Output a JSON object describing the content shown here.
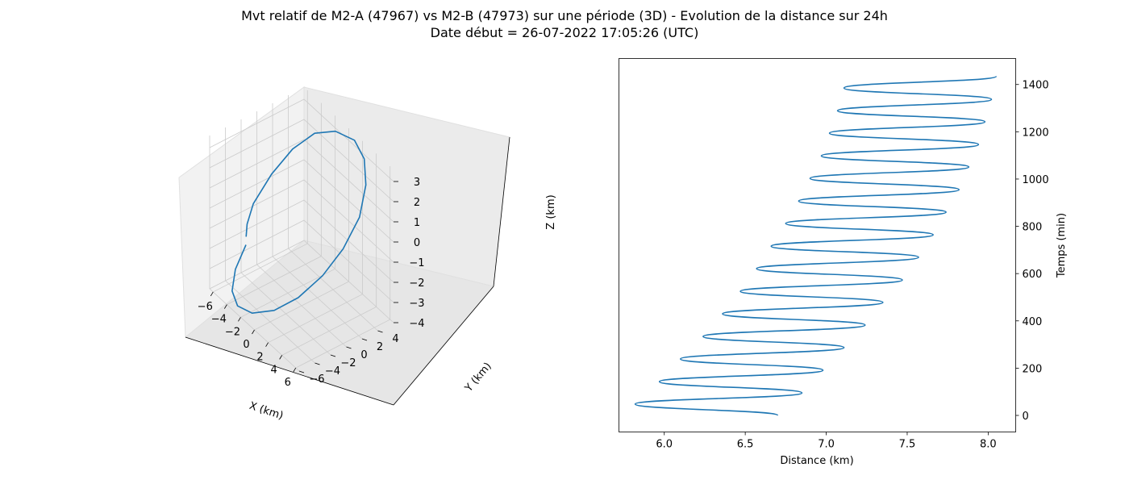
{
  "title_line1": "Mvt relatif de M2-A (47967) vs M2-B (47973) sur une période (3D) - Evolution de la distance sur 24h",
  "title_line2": "Date début = 26-07-2022 17:05:26 (UTC)",
  "colors": {
    "line": "#1f77b4",
    "pane_left": "#f2f2f2",
    "pane_right": "#ebebeb",
    "pane_floor": "#e6e6e6",
    "grid": "#cbcbcb"
  },
  "chart_data": [
    {
      "type": "line",
      "projection": "3d",
      "xlabel": "X (km)",
      "ylabel": "Y (km)",
      "zlabel": "Z (km)",
      "xlim": [
        -6.5,
        6.5
      ],
      "ylim": [
        -6,
        6
      ],
      "zlim": [
        -4,
        3.6
      ],
      "xticks": [
        "−6",
        "−4",
        "−2",
        "0",
        "2",
        "4",
        "6"
      ],
      "xtick_values": [
        -6,
        -4,
        -2,
        0,
        2,
        4,
        6
      ],
      "yticks": [
        "−6",
        "−4",
        "−2",
        "0",
        "2",
        "4"
      ],
      "ytick_values": [
        -6,
        -4,
        -2,
        0,
        2,
        4
      ],
      "zticks": [
        "3",
        "2",
        "1",
        "0",
        "−1",
        "−2",
        "−3",
        "−4"
      ],
      "ztick_values": [
        3,
        2,
        1,
        0,
        -1,
        -2,
        -3,
        -4
      ],
      "grid": true,
      "series": [
        {
          "x": [
            -5.8,
            -5.5,
            -4.5,
            -2.9,
            -0.8,
            1.5,
            3.5,
            5.0,
            5.8,
            5.9,
            5.0,
            3.5,
            1.5,
            -0.8,
            -2.9,
            -4.5,
            -5.5,
            -6.1,
            -6.2,
            -6.0
          ],
          "y": [
            -2.0,
            -3.6,
            -4.9,
            -5.6,
            -5.6,
            -4.8,
            -3.5,
            -1.7,
            0.2,
            2.2,
            3.8,
            4.9,
            5.4,
            5.0,
            4.2,
            2.8,
            1.0,
            -0.8,
            -1.5,
            -1.8
          ],
          "z": [
            -2.4,
            -3.2,
            -3.7,
            -3.8,
            -3.5,
            -2.8,
            -1.8,
            -0.6,
            0.6,
            1.8,
            2.8,
            3.4,
            3.6,
            3.4,
            2.8,
            1.8,
            0.6,
            -0.7,
            -1.6,
            -2.1
          ]
        }
      ]
    },
    {
      "type": "line",
      "xlabel": "Distance (km)",
      "ylabel": "Temps (min)",
      "xlim": [
        5.72,
        8.17
      ],
      "ylim": [
        -70,
        1510
      ],
      "xticks": [
        "6.0",
        "6.5",
        "7.0",
        "7.5",
        "8.0"
      ],
      "xtick_values": [
        6.0,
        6.5,
        7.0,
        7.5,
        8.0
      ],
      "yticks": [
        "0",
        "200",
        "400",
        "600",
        "800",
        "1000",
        "1200",
        "1400"
      ],
      "ytick_values": [
        0,
        200,
        400,
        600,
        800,
        1000,
        1200,
        1400
      ],
      "period_min": 95.5,
      "start_value": [
        6.7,
        0
      ],
      "end_value": [
        8.05,
        1435
      ],
      "peaks": [
        [
          5.82,
          48
        ],
        [
          5.97,
          143
        ],
        [
          6.1,
          239
        ],
        [
          6.24,
          334
        ],
        [
          6.36,
          430
        ],
        [
          6.47,
          525
        ],
        [
          6.57,
          621
        ],
        [
          6.66,
          716
        ],
        [
          6.75,
          812
        ],
        [
          6.83,
          907
        ],
        [
          6.9,
          1003
        ],
        [
          6.97,
          1098
        ],
        [
          7.02,
          1194
        ],
        [
          7.07,
          1289
        ],
        [
          7.11,
          1385
        ]
      ],
      "troughs": [
        [
          6.85,
          95
        ],
        [
          6.98,
          191
        ],
        [
          7.11,
          287
        ],
        [
          7.24,
          382
        ],
        [
          7.35,
          478
        ],
        [
          7.47,
          573
        ],
        [
          7.57,
          669
        ],
        [
          7.66,
          764
        ],
        [
          7.74,
          860
        ],
        [
          7.82,
          955
        ],
        [
          7.88,
          1051
        ],
        [
          7.94,
          1146
        ],
        [
          7.98,
          1242
        ],
        [
          8.02,
          1337
        ]
      ]
    }
  ]
}
